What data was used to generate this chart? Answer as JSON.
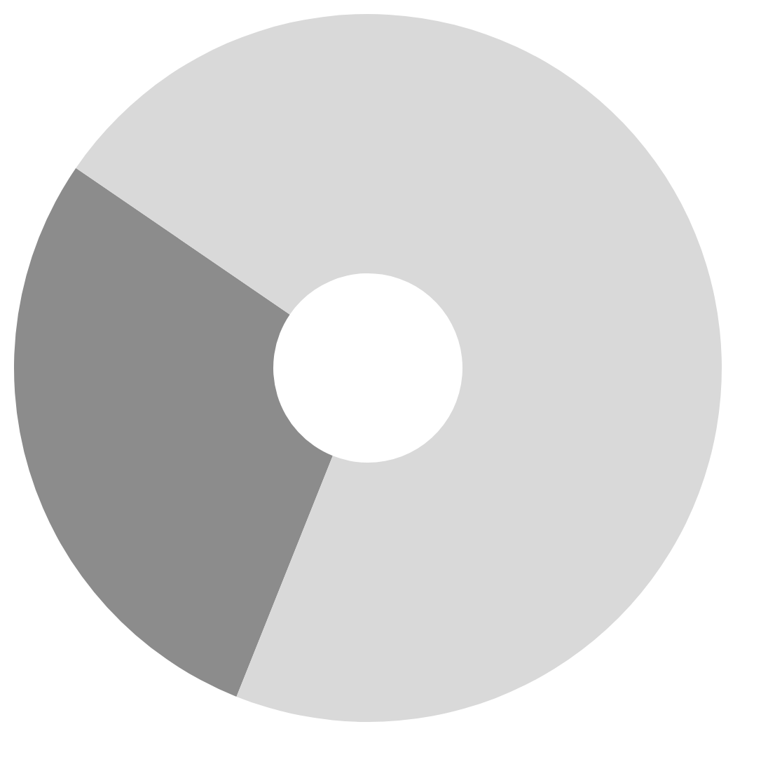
{
  "chart_data": {
    "type": "donut",
    "categories": [
      null,
      null
    ],
    "values": [
      28.5,
      71.5
    ],
    "colors": [
      "#8c8c8c",
      "#d9d9d9"
    ]
  }
}
